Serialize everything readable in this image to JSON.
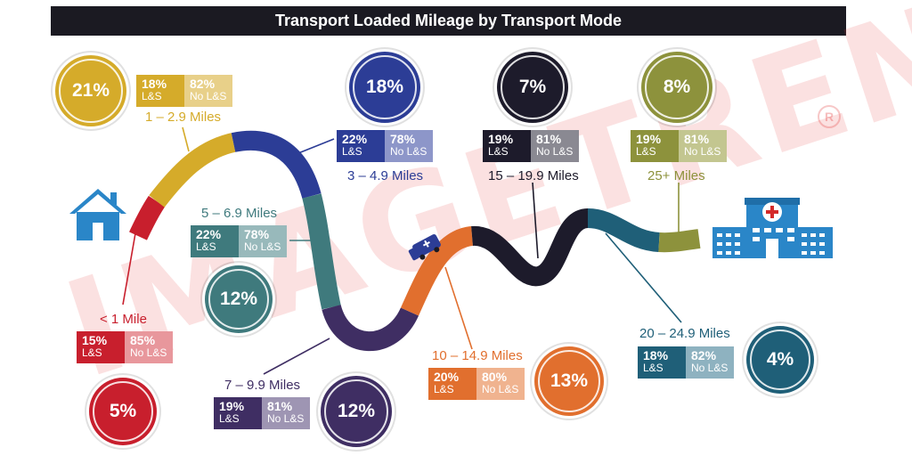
{
  "title": "Transport Loaded Mileage by Transport Mode",
  "watermark": "IMAGETREND",
  "watermark_mark": "R",
  "icons": {
    "home": "house-icon",
    "ambulance": "ambulance-icon",
    "hospital": "hospital-icon"
  },
  "segments": [
    {
      "id": "lt1",
      "range": "< 1 Mile",
      "share": "5%",
      "ls": "15%",
      "nols": "85%",
      "ls_label": "L&S",
      "nols_label": "No L&S",
      "color": "#c81f2d",
      "light": "#e8979c"
    },
    {
      "id": "1to3",
      "range": "1 – 2.9 Miles",
      "share": "21%",
      "ls": "18%",
      "nols": "82%",
      "ls_label": "L&S",
      "nols_label": "No L&S",
      "color": "#d5ab2a",
      "light": "#e8d089"
    },
    {
      "id": "3to5",
      "range": "3 – 4.9 Miles",
      "share": "18%",
      "ls": "22%",
      "nols": "78%",
      "ls_label": "L&S",
      "nols_label": "No L&S",
      "color": "#2c3d96",
      "light": "#8d96c9"
    },
    {
      "id": "5to7",
      "range": "5 – 6.9 Miles",
      "share": "12%",
      "ls": "22%",
      "nols": "78%",
      "ls_label": "L&S",
      "nols_label": "No L&S",
      "color": "#3f7a7d",
      "light": "#98b9bb"
    },
    {
      "id": "7to10",
      "range": "7 – 9.9 Miles",
      "share": "12%",
      "ls": "19%",
      "nols": "81%",
      "ls_label": "L&S",
      "nols_label": "No L&S",
      "color": "#3f2e63",
      "light": "#9e95b3"
    },
    {
      "id": "10to15",
      "range": "10 – 14.9 Miles",
      "share": "13%",
      "ls": "20%",
      "nols": "80%",
      "ls_label": "L&S",
      "nols_label": "No L&S",
      "color": "#e16f2e",
      "light": "#f0b38f"
    },
    {
      "id": "15to20",
      "range": "15 – 19.9 Miles",
      "share": "7%",
      "ls": "19%",
      "nols": "81%",
      "ls_label": "L&S",
      "nols_label": "No L&S",
      "color": "#1d1b2b",
      "light": "#8a8992"
    },
    {
      "id": "20to25",
      "range": "20 – 24.9 Miles",
      "share": "4%",
      "ls": "18%",
      "nols": "82%",
      "ls_label": "L&S",
      "nols_label": "No L&S",
      "color": "#1f5f78",
      "light": "#8eb2c0"
    },
    {
      "id": "25plus",
      "range": "25+ Miles",
      "share": "8%",
      "ls": "19%",
      "nols": "81%",
      "ls_label": "L&S",
      "nols_label": "No L&S",
      "color": "#8d923c",
      "light": "#c3c690"
    }
  ]
}
